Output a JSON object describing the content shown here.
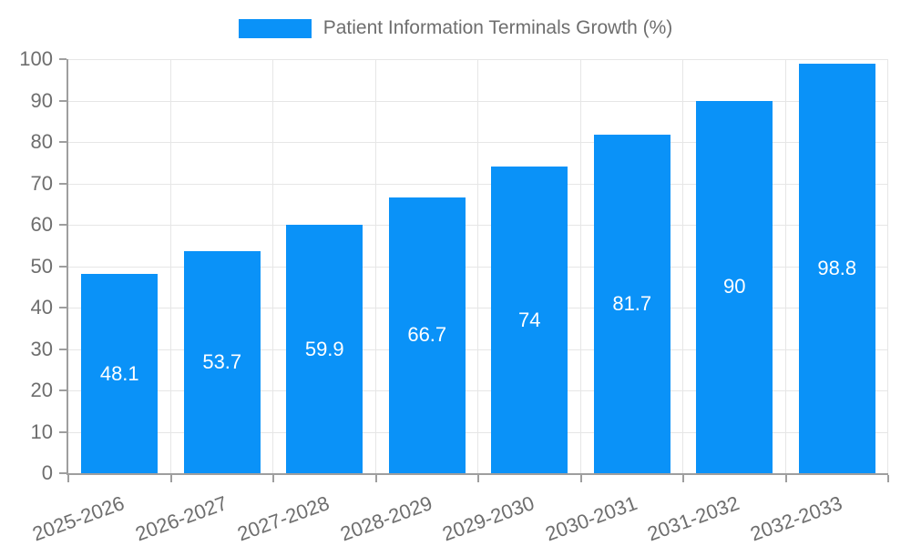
{
  "legend": {
    "swatch_icon": "series-color-swatch",
    "label": "Patient Information Terminals Growth (%)"
  },
  "chart_data": {
    "type": "bar",
    "title": "Patient Information Terminals Growth (%)",
    "categories": [
      "2025-2026",
      "2026-2027",
      "2027-2028",
      "2028-2029",
      "2029-2030",
      "2030-2031",
      "2031-2032",
      "2032-2033"
    ],
    "values": [
      48.1,
      53.7,
      59.9,
      66.7,
      74,
      81.7,
      90,
      98.8
    ],
    "value_labels": [
      "48.1",
      "53.7",
      "59.9",
      "66.7",
      "74",
      "81.7",
      "90",
      "98.8"
    ],
    "xlabel": "",
    "ylabel": "",
    "ylim": [
      0,
      100
    ],
    "ytick_step": 10,
    "ytick_labels": [
      "0",
      "10",
      "20",
      "30",
      "40",
      "50",
      "60",
      "70",
      "80",
      "90",
      "100"
    ],
    "grid": true,
    "legend_position": "top-center",
    "x_label_rotation_deg": -20,
    "colors": {
      "bar": "#0A92F8",
      "grid": "#E6E6E6",
      "axis": "#9E9E9E",
      "tick_text": "#6E6E6E",
      "value_label_text": "#FFFFFF",
      "background": "#FFFFFF"
    }
  }
}
